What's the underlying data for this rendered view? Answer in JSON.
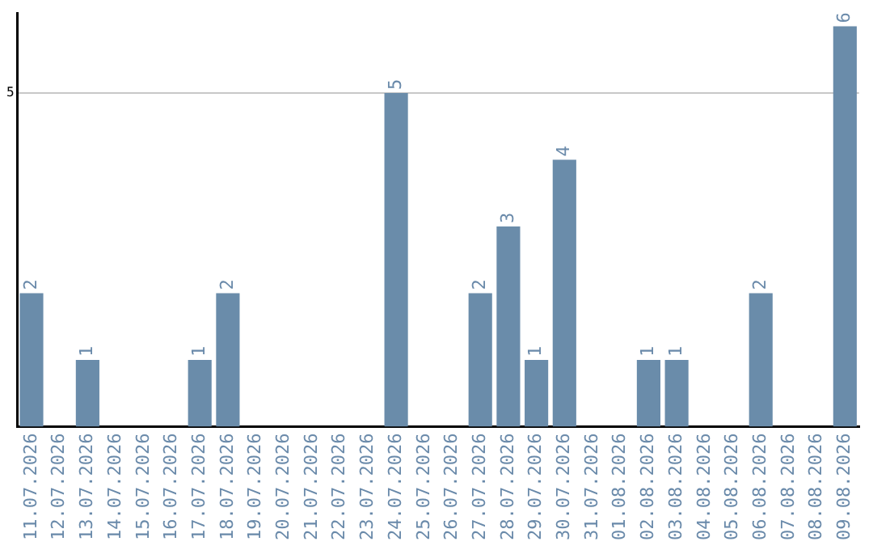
{
  "chart_data": {
    "type": "bar",
    "categories": [
      "11.07.2026",
      "12.07.2026",
      "13.07.2026",
      "14.07.2026",
      "15.07.2026",
      "16.07.2026",
      "17.07.2026",
      "18.07.2026",
      "19.07.2026",
      "20.07.2026",
      "21.07.2026",
      "22.07.2026",
      "23.07.2026",
      "24.07.2026",
      "25.07.2026",
      "26.07.2026",
      "27.07.2026",
      "28.07.2026",
      "29.07.2026",
      "30.07.2026",
      "31.07.2026",
      "01.08.2026",
      "02.08.2026",
      "03.08.2026",
      "04.08.2026",
      "05.08.2026",
      "06.08.2026",
      "07.08.2026",
      "08.08.2026",
      "09.08.2026"
    ],
    "values": [
      2,
      0,
      1,
      0,
      0,
      0,
      1,
      2,
      0,
      0,
      0,
      0,
      0,
      5,
      0,
      0,
      2,
      3,
      1,
      4,
      0,
      0,
      1,
      1,
      0,
      0,
      2,
      0,
      0,
      6
    ],
    "value_labels": [
      "2",
      null,
      "1",
      null,
      null,
      null,
      "1",
      "2",
      null,
      null,
      null,
      null,
      null,
      "5",
      null,
      null,
      "2",
      "3",
      "1",
      "4",
      null,
      null,
      "1",
      "1",
      null,
      null,
      "2",
      null,
      null,
      "6"
    ],
    "color": "#6a8caa",
    "ylim": [
      0,
      6.2
    ],
    "yticks": [
      5
    ],
    "grid": "y",
    "legend": false
  }
}
